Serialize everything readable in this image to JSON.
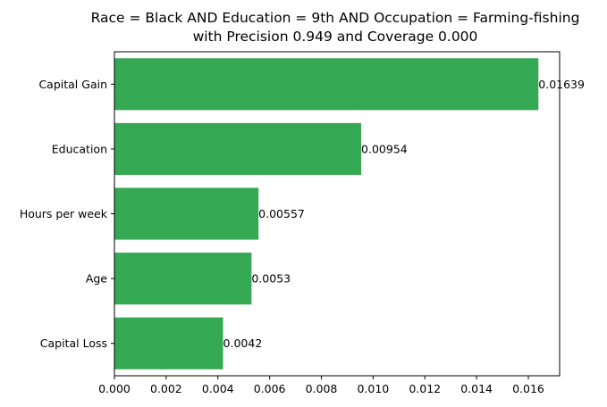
{
  "chart_data": {
    "type": "bar",
    "orientation": "horizontal",
    "title": "Race = Black AND Education = 9th AND Occupation = Farming-fishing",
    "subtitle": "with Precision 0.949 and Coverage 0.000",
    "categories": [
      "Capital Gain",
      "Education",
      "Hours per week",
      "Age",
      "Capital Loss"
    ],
    "values": [
      0.01639,
      0.00954,
      0.00557,
      0.0053,
      0.0042
    ],
    "value_labels": [
      "0.01639",
      "0.00954",
      "0.00557",
      "0.0053",
      "0.0042"
    ],
    "x_ticks": [
      "0.000",
      "0.002",
      "0.004",
      "0.006",
      "0.008",
      "0.010",
      "0.012",
      "0.014",
      "0.016"
    ],
    "xlim": [
      0,
      0.01721
    ],
    "xlabel": "",
    "ylabel": "",
    "grid": false,
    "bar_color": "#34a853"
  }
}
